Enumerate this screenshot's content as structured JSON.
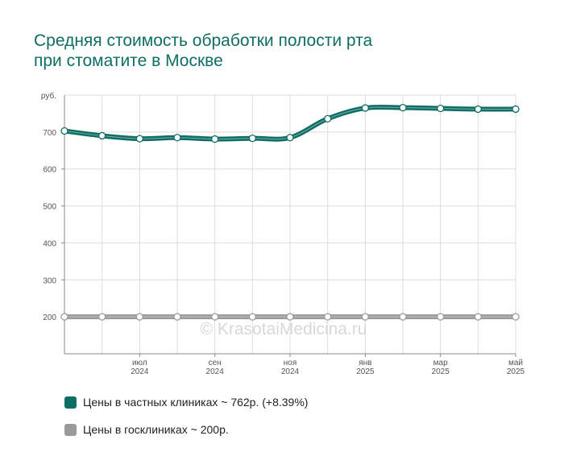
{
  "title_lines": [
    "Средняя стоимость обработки полости рта",
    "при стоматите в Москве"
  ],
  "watermark": "© KrasotaiMedicina.ru",
  "colors": {
    "title": "#0f6e64",
    "private": "#0f6e64",
    "public": "#9a9a9a",
    "grid": "#dddddd",
    "axis": "#888888",
    "tick_text": "#555555"
  },
  "legend": [
    {
      "label": "Цены в частных клиниках ~ 762р. (+8.39%)",
      "color": "#0f6e64"
    },
    {
      "label": "Цены в госклиниках ~ 200р.",
      "color": "#9a9a9a"
    }
  ],
  "chart_data": {
    "type": "line",
    "ylabel": "руб.",
    "ylim": [
      100,
      800
    ],
    "yticks": [
      200,
      300,
      400,
      500,
      600,
      700
    ],
    "x": [
      "2024-05",
      "2024-06",
      "2024-07",
      "2024-08",
      "2024-09",
      "2024-10",
      "2024-11",
      "2024-12",
      "2025-01",
      "2025-02",
      "2025-03",
      "2025-04",
      "2025-05"
    ],
    "xtick_labels": [
      {
        "month": "июл",
        "year": "2024",
        "at": "2024-07"
      },
      {
        "month": "сен",
        "year": "2024",
        "at": "2024-09"
      },
      {
        "month": "ноя",
        "year": "2024",
        "at": "2024-11"
      },
      {
        "month": "янв",
        "year": "2025",
        "at": "2025-01"
      },
      {
        "month": "мар",
        "year": "2025",
        "at": "2025-03"
      },
      {
        "month": "май",
        "year": "2025",
        "at": "2025-05"
      }
    ],
    "grid": true,
    "series": [
      {
        "name": "Цены в частных клиниках",
        "color": "#0f6e64",
        "values": [
          703,
          690,
          682,
          685,
          681,
          683,
          685,
          736,
          765,
          766,
          764,
          762,
          762
        ]
      },
      {
        "name": "Цены в госклиниках",
        "color": "#9a9a9a",
        "values": [
          200,
          200,
          200,
          200,
          200,
          200,
          200,
          200,
          200,
          200,
          200,
          200,
          200
        ]
      }
    ]
  }
}
